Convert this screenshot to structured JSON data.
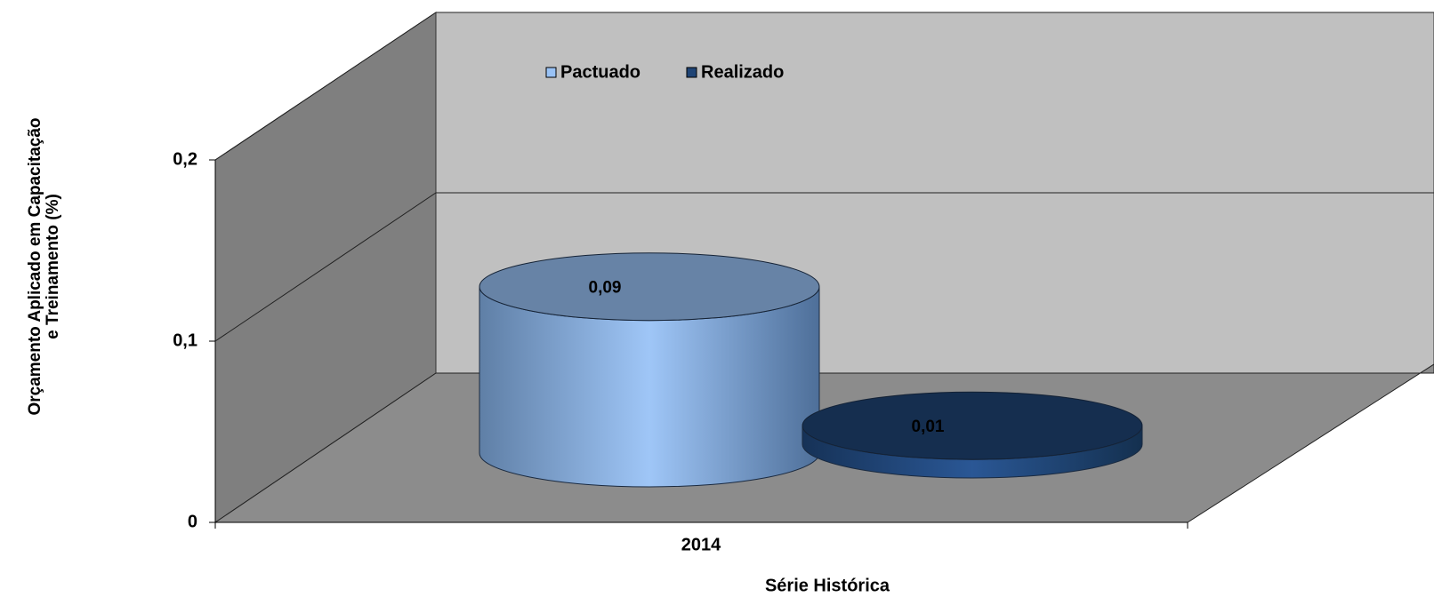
{
  "chart_data": {
    "type": "cylinder",
    "categories": [
      "2014"
    ],
    "series": [
      {
        "name": "Pactuado",
        "color": "#99c2f5",
        "values": [
          0.09
        ],
        "value_labels": [
          "0,09"
        ]
      },
      {
        "name": "Realizado",
        "color": "#1f4475",
        "values": [
          0.01
        ],
        "value_labels": [
          "0,01"
        ]
      }
    ],
    "ylim": [
      0,
      0.2
    ],
    "yticks": [
      0,
      {
        "value": 0.1,
        "label": "0,1"
      },
      {
        "value": 0.2,
        "label": "0,2"
      }
    ],
    "x_label": "Série Histórica",
    "y_label": [
      "Orçamento Aplicado em Capacitação",
      "e Treinamento (%)"
    ],
    "grid": true,
    "legend": "top"
  }
}
